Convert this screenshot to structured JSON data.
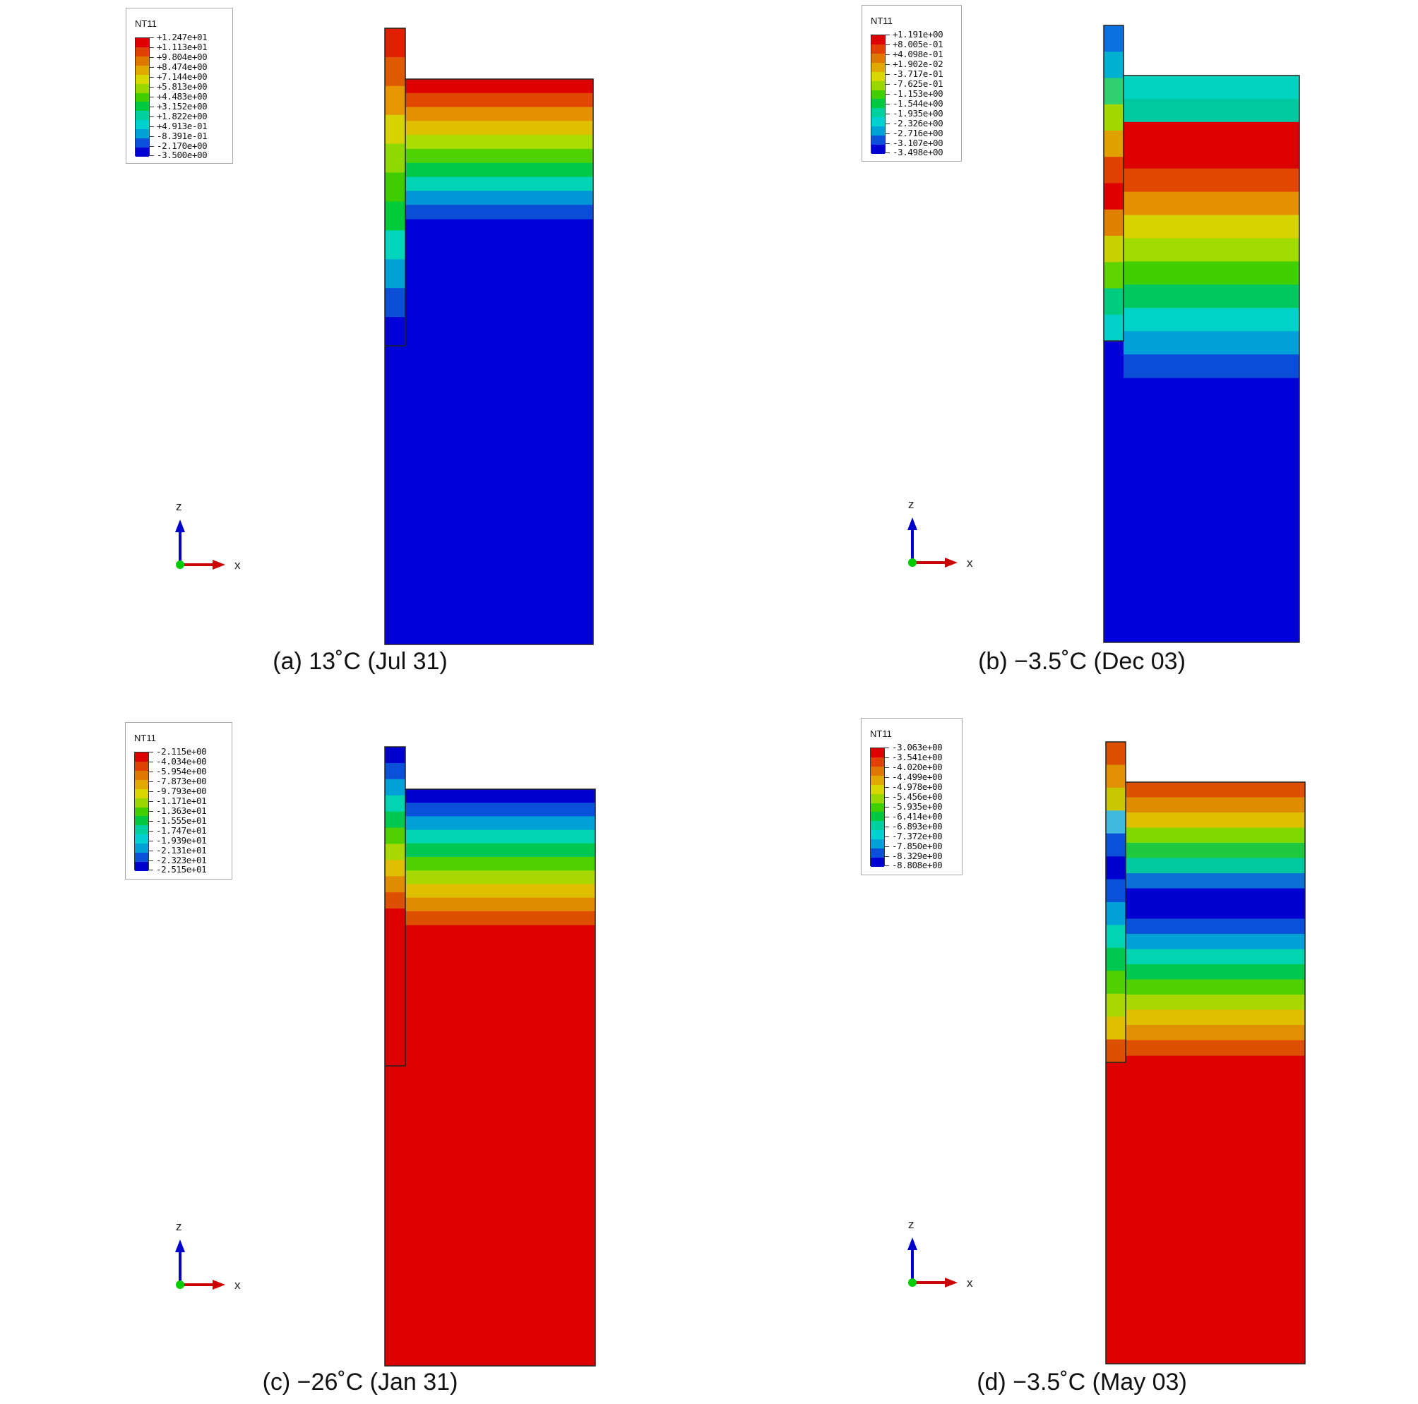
{
  "panels": [
    {
      "id": "a",
      "caption": "(a) 13˚C (Jul 31)",
      "legend": {
        "title": "NT11",
        "labels": [
          "+1.247e+01",
          "+1.113e+01",
          "+9.804e+00",
          "+8.474e+00",
          "+7.144e+00",
          "+5.813e+00",
          "+4.483e+00",
          "+3.152e+00",
          "+1.822e+00",
          "+4.913e-01",
          "-8.391e-01",
          "-2.170e+00",
          "-3.500e+00"
        ]
      },
      "column_bands": [
        "#e02000",
        "#dd5a00",
        "#e79600",
        "#d6d400",
        "#8fd800",
        "#3ccc00",
        "#00cc3a",
        "#00d6bb",
        "#00a2d6",
        "#0b4fd6",
        "#0000d8"
      ],
      "ground_bands": [
        "#dd0000",
        "#e04800",
        "#e59000",
        "#dfc000",
        "#a9dc00",
        "#50d200",
        "#00c848",
        "#00d4b4",
        "#0096d8",
        "#0a4ed8",
        "#0000d8"
      ]
    },
    {
      "id": "b",
      "caption": "(b) −3.5˚C (Dec 03)",
      "legend": {
        "title": "NT11",
        "labels": [
          "+1.191e+00",
          "+8.005e-01",
          "+4.098e-01",
          "+1.902e-02",
          "-3.717e-01",
          "-7.625e-01",
          "-1.153e+00",
          "-1.544e+00",
          "-1.935e+00",
          "-2.326e+00",
          "-2.716e+00",
          "-3.107e+00",
          "-3.498e+00"
        ]
      },
      "column_bands": [
        "#0a70e0",
        "#00b0d0",
        "#30d070",
        "#a0d800",
        "#e0a000",
        "#e04000",
        "#dd0000",
        "#e08000",
        "#c8d000",
        "#60d400",
        "#00cc80",
        "#00d0c8"
      ],
      "ground_bands": [
        "#00d4c0",
        "#00c8a0",
        "#dd0000",
        "#dd0000",
        "#e04800",
        "#e59000",
        "#d6d400",
        "#a0dc00",
        "#40d000",
        "#00c860",
        "#00d4c8",
        "#00a0d8",
        "#0a4ed8",
        "#0000d8"
      ]
    },
    {
      "id": "c",
      "caption": "(c) −26˚C (Jan 31)",
      "legend": {
        "title": "NT11",
        "labels": [
          "-2.115e+00",
          "-4.034e+00",
          "-5.954e+00",
          "-7.873e+00",
          "-9.793e+00",
          "-1.171e+01",
          "-1.363e+01",
          "-1.555e+01",
          "-1.747e+01",
          "-1.939e+01",
          "-2.131e+01",
          "-2.323e+01",
          "-2.515e+01"
        ]
      },
      "column_bands": [
        "#0000d0",
        "#0a50d8",
        "#00a0d8",
        "#00d4b0",
        "#00c850",
        "#50d000",
        "#a8d800",
        "#dfc000",
        "#e08c00",
        "#dd5000",
        "#dd0000"
      ],
      "ground_bands": [
        "#0000d0",
        "#0a50d8",
        "#00a0d8",
        "#00d4b0",
        "#00c850",
        "#50d000",
        "#a8d800",
        "#dfc000",
        "#e08c00",
        "#dd5000",
        "#dd0000"
      ]
    },
    {
      "id": "d",
      "caption": "(d) −3.5˚C (May 03)",
      "legend": {
        "title": "NT11",
        "labels": [
          "-3.063e+00",
          "-3.541e+00",
          "-4.020e+00",
          "-4.499e+00",
          "-4.978e+00",
          "-5.456e+00",
          "-5.935e+00",
          "-6.414e+00",
          "-6.893e+00",
          "-7.372e+00",
          "-7.850e+00",
          "-8.329e+00",
          "-8.808e+00"
        ]
      },
      "column_bands": [
        "#dd5000",
        "#e09000",
        "#c8c800",
        "#40b8e0",
        "#0a50d8",
        "#0000d0",
        "#0a50d8",
        "#00a0d8",
        "#00d4b0",
        "#00c850",
        "#50d000",
        "#a8d800",
        "#dfc000",
        "#dd5000"
      ],
      "ground_bands": [
        "#dd5000",
        "#e08c00",
        "#dfc000",
        "#80d800",
        "#20c840",
        "#00c8a0",
        "#0a70d8",
        "#0000d0",
        "#0000d0",
        "#0a50d8",
        "#00a0d8",
        "#00d4b0",
        "#00c850",
        "#50d000",
        "#a8d800",
        "#dfc000",
        "#e09000",
        "#dd5000",
        "#dd0000"
      ]
    }
  ],
  "legend_colors": [
    "#dd0000",
    "#e04000",
    "#e07800",
    "#e0a800",
    "#d8d800",
    "#98d800",
    "#40d000",
    "#00c840",
    "#00d0a0",
    "#00d0d0",
    "#00a0d8",
    "#0a50d8",
    "#0000d0"
  ],
  "axis": {
    "z_label": "z",
    "x_label": "x",
    "z_color": "#0000cc",
    "x_color": "#cc0000",
    "origin_color": "#00cc00"
  }
}
